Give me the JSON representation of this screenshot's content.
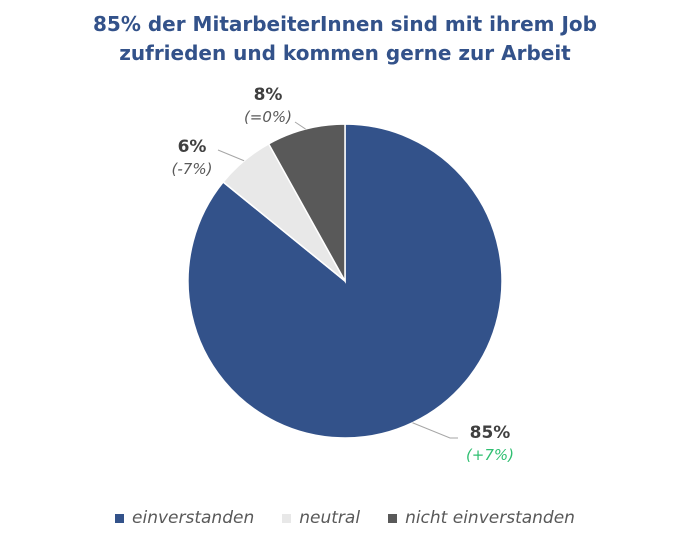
{
  "colors": {
    "title": "#33528a",
    "einverstanden": "#33528a",
    "neutral": "#e8e8e8",
    "nicht_einverstanden": "#595959",
    "positive_change": "#2fbf71",
    "neutral_change": "#595959",
    "leader_line": "#a6a6a6"
  },
  "chart_data": {
    "type": "pie",
    "title_lines": [
      "85% der MitarbeiterInnen sind mit ihrem Job",
      "zufrieden und kommen gerne zur Arbeit"
    ],
    "slices": [
      {
        "name": "einverstanden",
        "value": 85,
        "label": "85%",
        "change": "(+7%)",
        "change_trend": "positive",
        "color_key": "einverstanden"
      },
      {
        "name": "neutral",
        "value": 6,
        "label": "6%",
        "change": "(-7%)",
        "change_trend": "neutral",
        "color_key": "neutral"
      },
      {
        "name": "nicht einverstanden",
        "value": 8,
        "label": "8%",
        "change": "(=0%)",
        "change_trend": "neutral",
        "color_key": "nicht_einverstanden"
      }
    ],
    "legend": {
      "placement": "bottom",
      "items": [
        "einverstanden",
        "neutral",
        "nicht einverstanden"
      ]
    }
  }
}
